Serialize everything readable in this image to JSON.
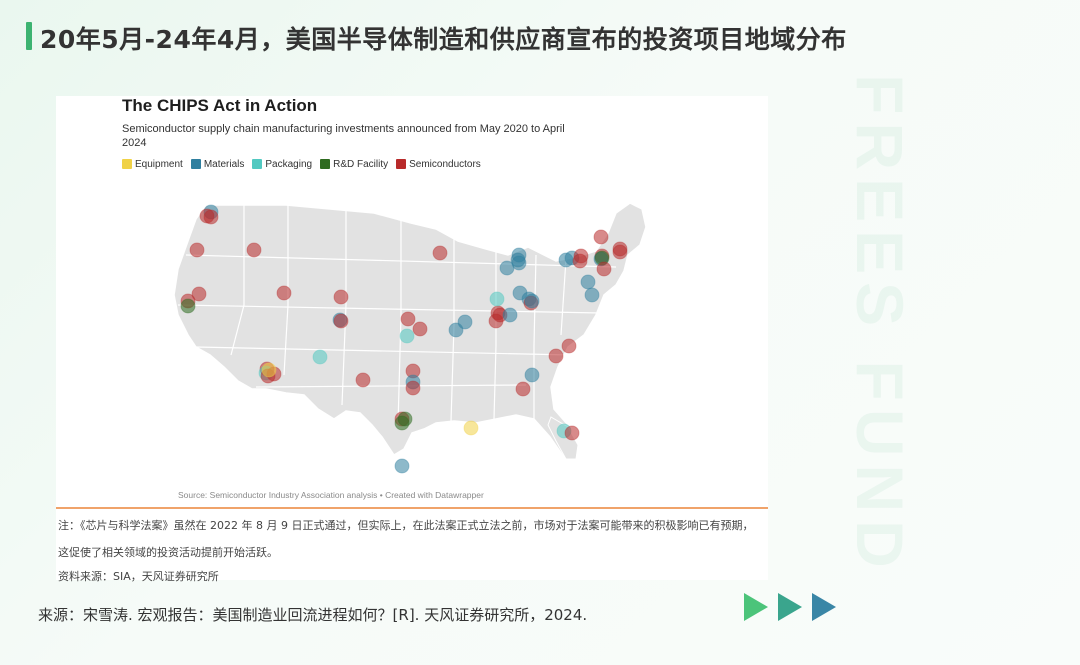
{
  "page": {
    "title": "20年5月-24年4月，美国半导体制造和供应商宣布的投资项目地域分布",
    "watermark": "FREES FUND",
    "source": "来源：宋雪涛. 宏观报告：美国制造业回流进程如何？[R]. 天风证券研究所，2024."
  },
  "map": {
    "title": "The CHIPS Act in Action",
    "subtitle": "Semiconductor supply chain manufacturing investments announced from May 2020 to April 2024",
    "source": "Source: Semiconductor Industry Association analysis • Created with Datawrapper",
    "legend": [
      {
        "label": "Equipment",
        "color": "#f0d247"
      },
      {
        "label": "Materials",
        "color": "#2f7f9f"
      },
      {
        "label": "Packaging",
        "color": "#52c9c1"
      },
      {
        "label": "R&D Facility",
        "color": "#2e6b1f"
      },
      {
        "label": "Semiconductors",
        "color": "#b82a2a"
      }
    ]
  },
  "note": {
    "text": "注：《芯片与科学法案》虽然在 2022 年 8 月 9 日正式通过，但实际上，在此法案正式立法之前，市场对于法案可能带来的积极影响已有预期，这促使了相关领域的投资活动提前开始活跃。",
    "source": "资料来源：SIA，天风证券研究所"
  },
  "icons": [
    "play-arrow-icon",
    "play-arrow-icon",
    "play-arrow-icon"
  ],
  "colors": {
    "accent": "#3cb371",
    "arrow1": "#4cc47a",
    "arrow2": "#3aa58d",
    "arrow3": "#3a86a6"
  }
}
